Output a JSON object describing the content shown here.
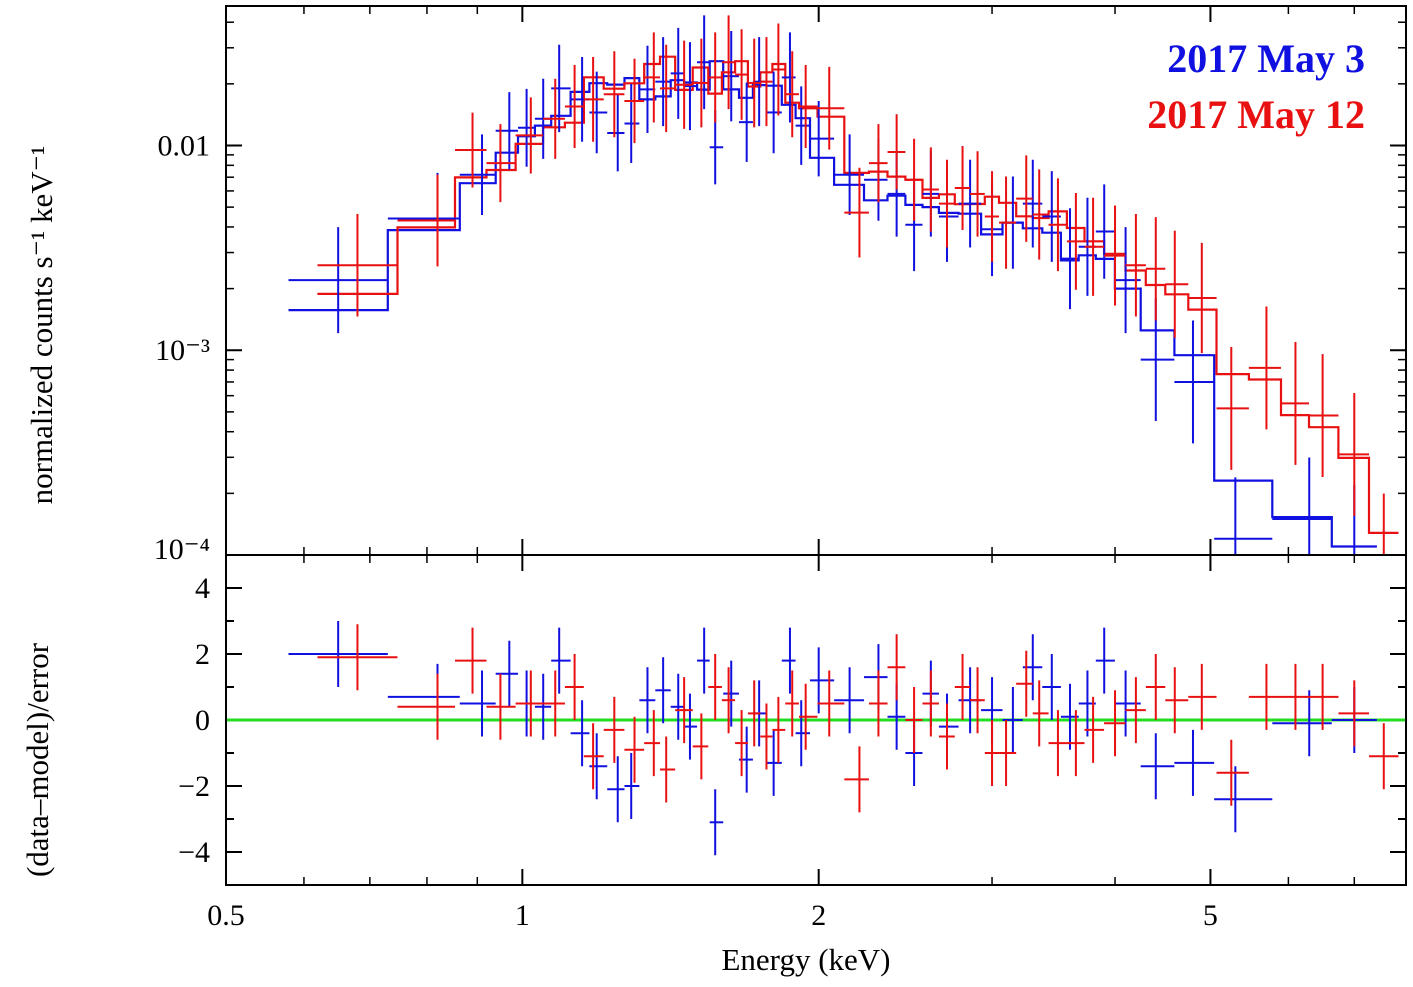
{
  "chart_data": {
    "type": "scatter",
    "xlabel": "Energy (keV)",
    "xscale": "log",
    "xlim": [
      0.5,
      7.9
    ],
    "x_ticks": [
      0.5,
      1,
      2,
      5
    ],
    "x_tick_labels": [
      "0.5",
      "1",
      "2",
      "5"
    ],
    "top_panel": {
      "ylabel": "normalized counts s⁻¹ keV⁻¹",
      "yscale": "log",
      "ylim": [
        0.0001,
        0.048
      ],
      "y_tick_labels": [
        "0.01",
        "10⁻³",
        "10⁻⁴"
      ],
      "legend_position": "top-right"
    },
    "bottom_panel": {
      "ylabel": "(data–model)/error",
      "ylim": [
        -5,
        5
      ],
      "y_ticks": [
        4,
        2,
        0,
        -2,
        -4
      ],
      "y_tick_labels": [
        "4",
        "2",
        "0",
        "−2",
        "−4"
      ],
      "reference_line": {
        "y": 0,
        "color": "#22dd22"
      }
    },
    "series": [
      {
        "name": "2017 May 3",
        "color": "#1010e0",
        "data": [
          [
            0.65,
            0.0022
          ],
          [
            0.82,
            0.0044
          ],
          [
            0.91,
            0.0072
          ],
          [
            0.97,
            0.0118
          ],
          [
            1.01,
            0.0122
          ],
          [
            1.05,
            0.0135
          ],
          [
            1.09,
            0.019
          ],
          [
            1.15,
            0.0168
          ],
          [
            1.19,
            0.0145
          ],
          [
            1.25,
            0.0115
          ],
          [
            1.29,
            0.0128
          ],
          [
            1.34,
            0.0188
          ],
          [
            1.39,
            0.0205
          ],
          [
            1.44,
            0.0225
          ],
          [
            1.48,
            0.0195
          ],
          [
            1.53,
            0.0255
          ],
          [
            1.57,
            0.0098
          ],
          [
            1.63,
            0.0218
          ],
          [
            1.69,
            0.013
          ],
          [
            1.74,
            0.0205
          ],
          [
            1.8,
            0.0145
          ],
          [
            1.87,
            0.0215
          ],
          [
            1.92,
            0.0125
          ],
          [
            2.0,
            0.0108
          ],
          [
            2.15,
            0.0072
          ],
          [
            2.3,
            0.0068
          ],
          [
            2.4,
            0.0058
          ],
          [
            2.5,
            0.0041
          ],
          [
            2.6,
            0.0058
          ],
          [
            2.7,
            0.0045
          ],
          [
            2.85,
            0.0052
          ],
          [
            3.0,
            0.0039
          ],
          [
            3.15,
            0.0042
          ],
          [
            3.3,
            0.0052
          ],
          [
            3.45,
            0.0045
          ],
          [
            3.6,
            0.0028
          ],
          [
            3.75,
            0.0032
          ],
          [
            3.9,
            0.0038
          ],
          [
            4.1,
            0.0022
          ],
          [
            4.4,
            0.0009
          ],
          [
            4.8,
            0.0007
          ],
          [
            5.3,
            0.00012
          ],
          [
            6.3,
            0.00015
          ],
          [
            7.0,
            0.00011
          ]
        ],
        "residuals": [
          [
            0.65,
            2.0
          ],
          [
            0.82,
            0.7
          ],
          [
            0.91,
            0.5
          ],
          [
            0.97,
            1.4
          ],
          [
            1.01,
            0.5
          ],
          [
            1.05,
            0.4
          ],
          [
            1.09,
            1.8
          ],
          [
            1.15,
            -0.4
          ],
          [
            1.19,
            -1.4
          ],
          [
            1.25,
            -2.1
          ],
          [
            1.29,
            -2.0
          ],
          [
            1.34,
            0.6
          ],
          [
            1.39,
            0.9
          ],
          [
            1.44,
            0.4
          ],
          [
            1.48,
            -0.2
          ],
          [
            1.53,
            1.8
          ],
          [
            1.57,
            -3.1
          ],
          [
            1.63,
            0.8
          ],
          [
            1.69,
            -1.2
          ],
          [
            1.74,
            0.2
          ],
          [
            1.8,
            -1.3
          ],
          [
            1.87,
            1.8
          ],
          [
            1.92,
            -0.4
          ],
          [
            2.0,
            1.2
          ],
          [
            2.15,
            0.6
          ],
          [
            2.3,
            1.3
          ],
          [
            2.4,
            0.1
          ],
          [
            2.5,
            -1.0
          ],
          [
            2.6,
            0.8
          ],
          [
            2.7,
            -0.2
          ],
          [
            2.85,
            0.6
          ],
          [
            3.0,
            0.3
          ],
          [
            3.15,
            0.0
          ],
          [
            3.3,
            1.6
          ],
          [
            3.45,
            1.0
          ],
          [
            3.6,
            0.1
          ],
          [
            3.75,
            0.5
          ],
          [
            3.9,
            1.8
          ],
          [
            4.1,
            0.5
          ],
          [
            4.4,
            -1.4
          ],
          [
            4.8,
            -1.3
          ],
          [
            5.3,
            -2.4
          ],
          [
            6.3,
            -0.1
          ],
          [
            7.0,
            0.0
          ]
        ]
      },
      {
        "name": "2017 May 12",
        "color": "#e81010",
        "data": [
          [
            0.68,
            0.0026
          ],
          [
            0.82,
            0.0043
          ],
          [
            0.89,
            0.0095
          ],
          [
            0.95,
            0.0082
          ],
          [
            1.02,
            0.0112
          ],
          [
            1.08,
            0.0135
          ],
          [
            1.13,
            0.0155
          ],
          [
            1.18,
            0.0168
          ],
          [
            1.24,
            0.0178
          ],
          [
            1.3,
            0.0165
          ],
          [
            1.36,
            0.0215
          ],
          [
            1.4,
            0.019
          ],
          [
            1.46,
            0.0198
          ],
          [
            1.52,
            0.0202
          ],
          [
            1.57,
            0.0215
          ],
          [
            1.62,
            0.0255
          ],
          [
            1.67,
            0.0222
          ],
          [
            1.72,
            0.0202
          ],
          [
            1.77,
            0.0205
          ],
          [
            1.82,
            0.0235
          ],
          [
            1.88,
            0.0178
          ],
          [
            1.94,
            0.0155
          ],
          [
            2.05,
            0.0152
          ],
          [
            2.2,
            0.0047
          ],
          [
            2.3,
            0.0082
          ],
          [
            2.4,
            0.0093
          ],
          [
            2.5,
            0.0068
          ],
          [
            2.6,
            0.0061
          ],
          [
            2.7,
            0.0052
          ],
          [
            2.8,
            0.0062
          ],
          [
            2.9,
            0.0058
          ],
          [
            3.0,
            0.0045
          ],
          [
            3.1,
            0.0042
          ],
          [
            3.25,
            0.0055
          ],
          [
            3.35,
            0.0046
          ],
          [
            3.5,
            0.0041
          ],
          [
            3.65,
            0.0034
          ],
          [
            3.8,
            0.0032
          ],
          [
            4.0,
            0.0029
          ],
          [
            4.2,
            0.0026
          ],
          [
            4.4,
            0.0025
          ],
          [
            4.6,
            0.0021
          ],
          [
            4.9,
            0.0018
          ],
          [
            5.25,
            0.00052
          ],
          [
            5.7,
            0.00082
          ],
          [
            6.1,
            0.00055
          ],
          [
            6.5,
            0.00048
          ],
          [
            7.0,
            0.00031
          ],
          [
            7.5,
            0.0001
          ]
        ],
        "residuals": [
          [
            0.68,
            1.9
          ],
          [
            0.82,
            0.4
          ],
          [
            0.89,
            1.8
          ],
          [
            0.95,
            0.4
          ],
          [
            1.02,
            0.5
          ],
          [
            1.08,
            0.5
          ],
          [
            1.13,
            1.0
          ],
          [
            1.18,
            -1.1
          ],
          [
            1.24,
            -0.3
          ],
          [
            1.3,
            -0.9
          ],
          [
            1.36,
            -0.7
          ],
          [
            1.4,
            -1.5
          ],
          [
            1.46,
            0.3
          ],
          [
            1.52,
            -0.8
          ],
          [
            1.57,
            1.0
          ],
          [
            1.62,
            0.6
          ],
          [
            1.67,
            -0.7
          ],
          [
            1.72,
            0.2
          ],
          [
            1.77,
            -0.5
          ],
          [
            1.82,
            -0.3
          ],
          [
            1.88,
            0.5
          ],
          [
            1.94,
            0.1
          ],
          [
            2.05,
            0.5
          ],
          [
            2.2,
            -1.8
          ],
          [
            2.3,
            0.5
          ],
          [
            2.4,
            1.6
          ],
          [
            2.5,
            0.0
          ],
          [
            2.6,
            0.5
          ],
          [
            2.7,
            -0.5
          ],
          [
            2.8,
            1.0
          ],
          [
            2.9,
            0.6
          ],
          [
            3.0,
            -1.0
          ],
          [
            3.1,
            -1.0
          ],
          [
            3.25,
            1.1
          ],
          [
            3.35,
            0.2
          ],
          [
            3.5,
            -0.7
          ],
          [
            3.65,
            -0.7
          ],
          [
            3.8,
            -0.3
          ],
          [
            4.0,
            -0.1
          ],
          [
            4.2,
            0.3
          ],
          [
            4.4,
            1.0
          ],
          [
            4.6,
            0.6
          ],
          [
            4.9,
            0.7
          ],
          [
            5.25,
            -1.6
          ],
          [
            5.7,
            0.7
          ],
          [
            6.1,
            0.7
          ],
          [
            6.5,
            0.7
          ],
          [
            7.0,
            0.2
          ],
          [
            7.5,
            -1.1
          ]
        ]
      }
    ]
  }
}
